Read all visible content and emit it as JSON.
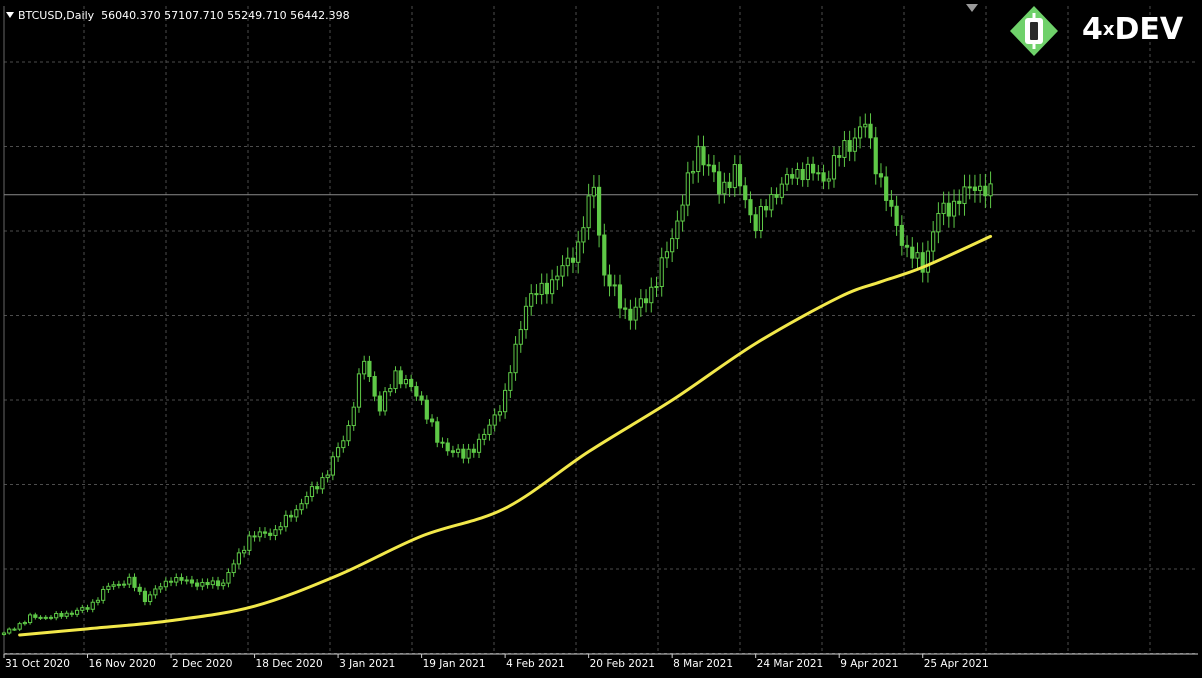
{
  "header": {
    "symbol": "BTCUSD,Daily",
    "ohlc": "56040.370 57107.710 55249.710 56442.398"
  },
  "logo": {
    "brand": "4",
    "mark": "x",
    "name": "DEV",
    "icon": "4xdev-diamond-icon"
  },
  "colors": {
    "background": "#000000",
    "grid": "#4d4d4d",
    "candles": "#5ec847",
    "moving_average": "#f2e84a",
    "price_line": "#8a8a8a",
    "logo_green": "#6fd16a"
  },
  "chart_data": {
    "type": "candlestick",
    "title": "BTCUSD,Daily",
    "period": "Daily",
    "price_line": 56442.398,
    "x_ticks": [
      "31 Oct 2020",
      "16 Nov 2020",
      "2 Dec 2020",
      "18 Dec 2020",
      "3 Jan 2021",
      "19 Jan 2021",
      "4 Feb 2021",
      "20 Feb 2021",
      "8 Mar 2021",
      "24 Mar 2021",
      "9 Apr 2021",
      "25 Apr 2021"
    ],
    "ylim": [
      13700,
      65700
    ],
    "grid": true,
    "close_anchors": [
      [
        "2020-10-31",
        13800
      ],
      [
        "2020-11-05",
        15400
      ],
      [
        "2020-11-10",
        15500
      ],
      [
        "2020-11-16",
        16300
      ],
      [
        "2020-11-20",
        18400
      ],
      [
        "2020-11-24",
        19000
      ],
      [
        "2020-11-27",
        17200
      ],
      [
        "2020-12-02",
        19200
      ],
      [
        "2020-12-08",
        18600
      ],
      [
        "2020-12-12",
        18800
      ],
      [
        "2020-12-17",
        23200
      ],
      [
        "2020-12-22",
        23800
      ],
      [
        "2020-12-27",
        26500
      ],
      [
        "2021-01-01",
        29500
      ],
      [
        "2021-01-05",
        34000
      ],
      [
        "2021-01-08",
        40500
      ],
      [
        "2021-01-11",
        35500
      ],
      [
        "2021-01-14",
        39200
      ],
      [
        "2021-01-19",
        36500
      ],
      [
        "2021-01-22",
        32500
      ],
      [
        "2021-01-27",
        31000
      ],
      [
        "2021-01-31",
        33000
      ],
      [
        "2021-02-04",
        37000
      ],
      [
        "2021-02-08",
        46000
      ],
      [
        "2021-02-14",
        48500
      ],
      [
        "2021-02-18",
        51500
      ],
      [
        "2021-02-21",
        57500
      ],
      [
        "2021-02-23",
        48500
      ],
      [
        "2021-02-28",
        44500
      ],
      [
        "2021-03-05",
        48000
      ],
      [
        "2021-03-09",
        54000
      ],
      [
        "2021-03-13",
        61000
      ],
      [
        "2021-03-17",
        57000
      ],
      [
        "2021-03-20",
        58500
      ],
      [
        "2021-03-24",
        53500
      ],
      [
        "2021-03-28",
        57000
      ],
      [
        "2021-04-02",
        59000
      ],
      [
        "2021-04-06",
        58000
      ],
      [
        "2021-04-10",
        61000
      ],
      [
        "2021-04-14",
        63200
      ],
      [
        "2021-04-18",
        56000
      ],
      [
        "2021-04-22",
        51000
      ],
      [
        "2021-04-25",
        49500
      ],
      [
        "2021-04-28",
        54500
      ],
      [
        "2021-05-02",
        56000
      ],
      [
        "2021-05-05",
        57500
      ],
      [
        "2021-05-08",
        56442
      ]
    ],
    "moving_average": [
      [
        "2020-11-03",
        13700
      ],
      [
        "2020-11-16",
        14300
      ],
      [
        "2020-12-02",
        15100
      ],
      [
        "2020-12-18",
        16500
      ],
      [
        "2021-01-03",
        19500
      ],
      [
        "2021-01-19",
        23300
      ],
      [
        "2021-02-04",
        26000
      ],
      [
        "2021-02-20",
        31500
      ],
      [
        "2021-03-08",
        36500
      ],
      [
        "2021-03-24",
        42000
      ],
      [
        "2021-04-09",
        46500
      ],
      [
        "2021-04-17",
        48000
      ],
      [
        "2021-04-25",
        49400
      ],
      [
        "2021-05-08",
        52400
      ]
    ]
  }
}
